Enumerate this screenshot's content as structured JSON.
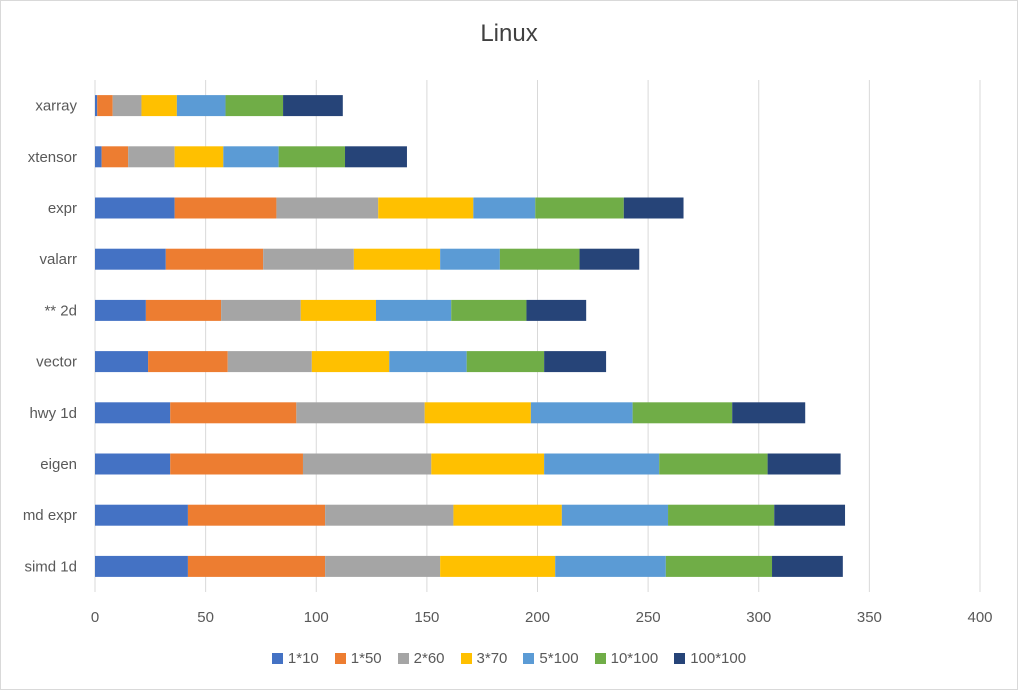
{
  "chart_data": {
    "type": "bar",
    "orientation": "horizontal",
    "stacked": true,
    "title": "Linux",
    "xlabel": "",
    "ylabel": "",
    "xlim": [
      0,
      400
    ],
    "xticks": [
      0,
      50,
      100,
      150,
      200,
      250,
      300,
      350,
      400
    ],
    "grid": true,
    "legend_position": "bottom",
    "categories": [
      "xarray",
      "xtensor",
      "expr",
      "valarr",
      "** 2d",
      "vector",
      "hwy 1d",
      "eigen",
      "md expr",
      "simd 1d"
    ],
    "series": [
      {
        "name": "1*10",
        "color": "#4472C4",
        "values": [
          1,
          3,
          36,
          32,
          23,
          24,
          34,
          34,
          42,
          42
        ]
      },
      {
        "name": "1*50",
        "color": "#ED7D31",
        "values": [
          7,
          12,
          46,
          44,
          34,
          36,
          57,
          60,
          62,
          62
        ]
      },
      {
        "name": "2*60",
        "color": "#A5A5A5",
        "values": [
          13,
          21,
          46,
          41,
          36,
          38,
          58,
          58,
          58,
          52
        ]
      },
      {
        "name": "3*70",
        "color": "#FFC000",
        "values": [
          16,
          22,
          43,
          39,
          34,
          35,
          48,
          51,
          49,
          52
        ]
      },
      {
        "name": "5*100",
        "color": "#5B9BD5",
        "values": [
          22,
          25,
          28,
          27,
          34,
          35,
          46,
          52,
          48,
          50
        ]
      },
      {
        "name": "10*100",
        "color": "#70AD47",
        "values": [
          26,
          30,
          40,
          36,
          34,
          35,
          45,
          49,
          48,
          48
        ]
      },
      {
        "name": "100*100",
        "color": "#264478",
        "values": [
          27,
          28,
          27,
          27,
          27,
          28,
          33,
          33,
          32,
          32
        ]
      }
    ]
  }
}
